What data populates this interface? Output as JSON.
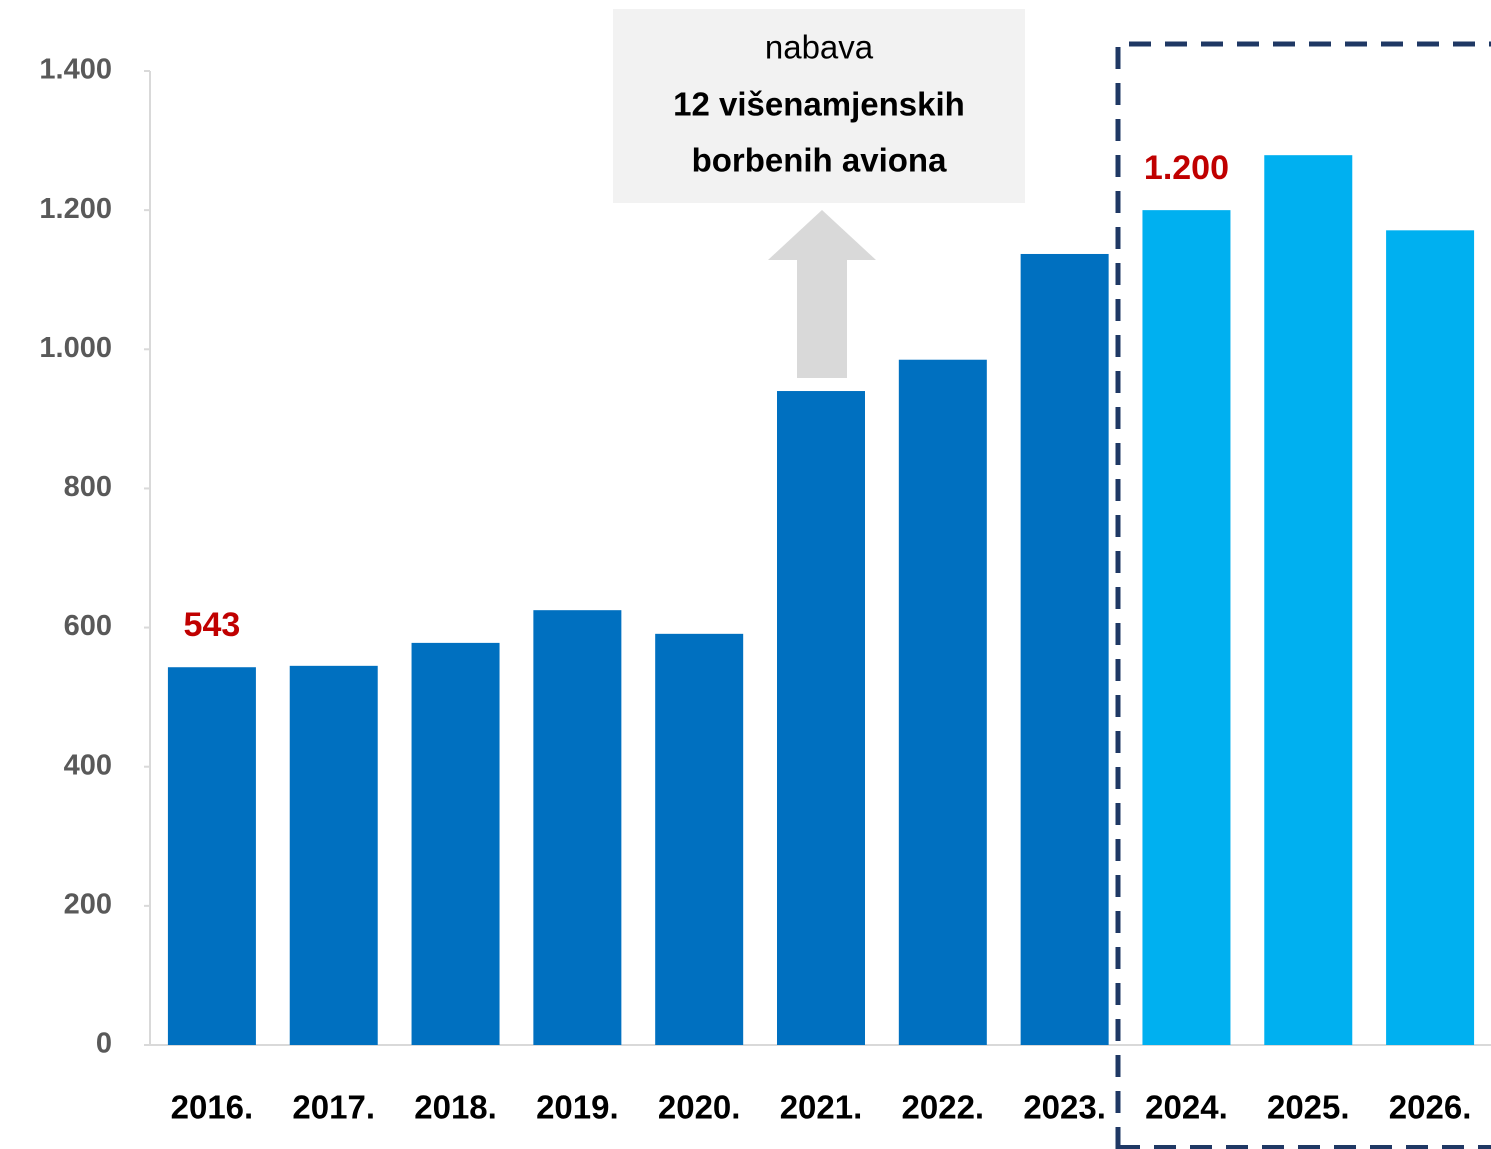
{
  "chart_data": {
    "type": "bar",
    "categories": [
      "2016.",
      "2017.",
      "2018.",
      "2019.",
      "2020.",
      "2021.",
      "2022.",
      "2023.",
      "2024.",
      "2025.",
      "2026."
    ],
    "values": [
      543,
      545,
      578,
      625,
      591,
      940,
      985,
      1137,
      1200,
      1279,
      1171
    ],
    "value_labels": [
      "543",
      null,
      null,
      null,
      null,
      null,
      null,
      null,
      "1.200",
      null,
      null
    ],
    "colors": [
      "#0070c0",
      "#0070c0",
      "#0070c0",
      "#0070c0",
      "#0070c0",
      "#0070c0",
      "#0070c0",
      "#0070c0",
      "#00b0f0",
      "#00b0f0",
      "#00b0f0"
    ],
    "ylim": [
      0,
      1400
    ],
    "yticks": [
      0,
      200,
      400,
      600,
      800,
      {
        "value": 1000,
        "label": "1.000"
      },
      {
        "value": 1200,
        "label": "1.200"
      },
      {
        "value": 1400,
        "label": "1.400"
      }
    ],
    "annotation": {
      "line1": "nabava",
      "line2": "12 višenamjenskih",
      "line3": "borbenih aviona"
    }
  }
}
